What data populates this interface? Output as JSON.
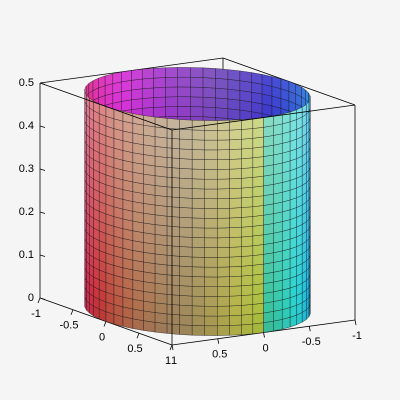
{
  "chart_data": {
    "type": "surface3d",
    "xlim": [
      -1,
      1
    ],
    "xticks": [
      -1,
      -0.5,
      0,
      0.5,
      1
    ],
    "ylim": [
      -1,
      1
    ],
    "yticks": [
      -1,
      -0.5,
      0,
      0.5,
      1
    ],
    "zlim": [
      0,
      0.5
    ],
    "zticks": [
      0,
      0.1,
      0.2,
      0.3,
      0.4,
      0.5
    ]
  }
}
